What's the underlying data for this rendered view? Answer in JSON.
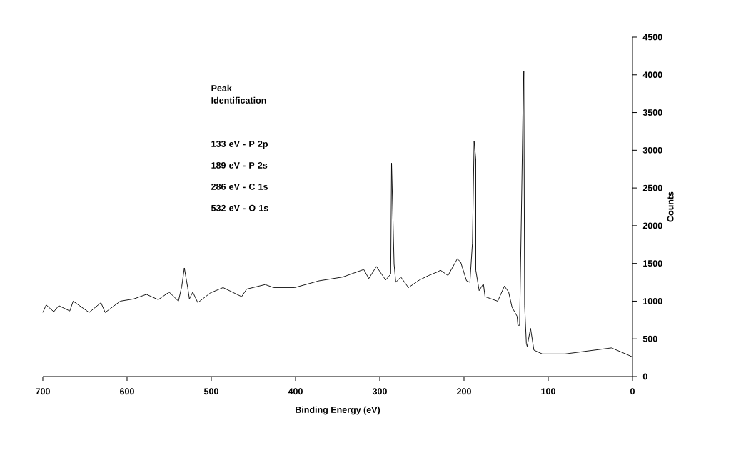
{
  "chart_data": {
    "type": "line",
    "xlabel": "Binding Energy (eV)",
    "ylabel": "Counts",
    "annotations": [
      "Peak Identification",
      "133 eV -  P 2p",
      "189 eV -  P 2s",
      "286 eV -  C 1s",
      "532 eV -  O 1s"
    ],
    "xlim": [
      700,
      0
    ],
    "xticks": [
      700,
      600,
      500,
      400,
      300,
      200,
      100,
      0
    ],
    "ylim": [
      0,
      4500
    ],
    "yticks": [
      0,
      500,
      1000,
      1500,
      2000,
      2500,
      3000,
      3500,
      4000,
      4500
    ],
    "grid": false,
    "marker": "none",
    "line_style": "solid",
    "series": [
      {
        "color": "#000000",
        "x": [
          700,
          696,
          687,
          681,
          668,
          664,
          645,
          631,
          626,
          608,
          592,
          577,
          563,
          550,
          539,
          535,
          532,
          528,
          526,
          522,
          516,
          501,
          486,
          464,
          458,
          436,
          426,
          401,
          372,
          344,
          319,
          313,
          304,
          293,
          287,
          286,
          283,
          281,
          275,
          266,
          253,
          242,
          231,
          228,
          219,
          208,
          204,
          197,
          193,
          190,
          188,
          186,
          186,
          182,
          177,
          175,
          160,
          152,
          147,
          143,
          137,
          136,
          134,
          132,
          130,
          129,
          128,
          126,
          125,
          121,
          117,
          107,
          80,
          25,
          8,
          0
        ],
        "values": [
          850,
          950,
          860,
          940,
          870,
          1000,
          850,
          980,
          850,
          1000,
          1030,
          1090,
          1020,
          1120,
          1000,
          1200,
          1440,
          1180,
          1030,
          1120,
          980,
          1110,
          1180,
          1060,
          1160,
          1220,
          1180,
          1180,
          1270,
          1320,
          1420,
          1300,
          1460,
          1280,
          1360,
          2830,
          1490,
          1250,
          1320,
          1180,
          1280,
          1340,
          1390,
          1410,
          1340,
          1560,
          1520,
          1270,
          1250,
          1770,
          3120,
          2880,
          1410,
          1140,
          1230,
          1060,
          1000,
          1200,
          1120,
          920,
          800,
          680,
          680,
          2060,
          3540,
          4050,
          940,
          440,
          400,
          640,
          350,
          300,
          300,
          380,
          300,
          260
        ]
      }
    ]
  }
}
